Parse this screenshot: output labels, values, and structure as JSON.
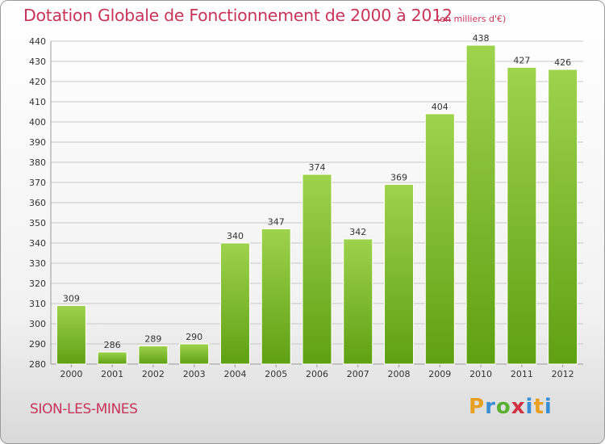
{
  "chart_data": {
    "type": "bar",
    "title": "Dotation Globale de Fonctionnement de 2000 à 2012",
    "unit_label": "(en milliers d'€)",
    "categories": [
      "2000",
      "2001",
      "2002",
      "2003",
      "2004",
      "2005",
      "2006",
      "2007",
      "2008",
      "2009",
      "2010",
      "2011",
      "2012"
    ],
    "values": [
      309,
      286,
      289,
      290,
      340,
      347,
      374,
      342,
      369,
      404,
      438,
      427,
      426
    ],
    "ylim": [
      280,
      440
    ],
    "yticks": [
      280,
      290,
      300,
      310,
      320,
      330,
      340,
      350,
      360,
      370,
      380,
      390,
      400,
      410,
      420,
      430,
      440
    ],
    "xlabel": "",
    "ylabel": "",
    "grid": true,
    "bar_color_top": "#9ed34d",
    "bar_color_bottom": "#5fa012"
  },
  "footer": {
    "commune": "SION-LES-MINES",
    "logo": {
      "p": "P",
      "r": "r",
      "o": "o",
      "x": "x",
      "i": "i",
      "t": "t",
      "i2": "i"
    }
  }
}
